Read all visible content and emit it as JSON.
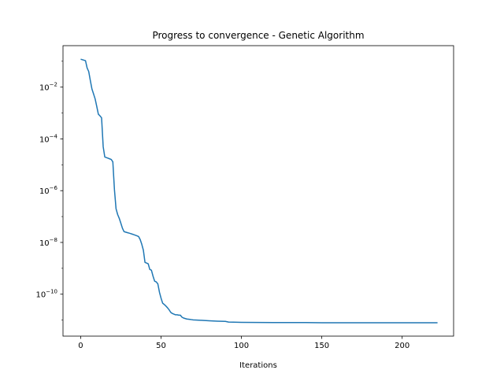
{
  "chart_data": {
    "type": "line",
    "title": "Progress to convergence - Genetic Algorithm",
    "xlabel": "Iterations",
    "ylabel": "",
    "yscale": "log",
    "xlim": [
      -11,
      232
    ],
    "ylim": [
      2.4e-12,
      0.4
    ],
    "grid": false,
    "legend": "none",
    "xticks": [
      0,
      50,
      100,
      150,
      200
    ],
    "xtick_labels": [
      "0",
      "50",
      "100",
      "150",
      "200"
    ],
    "yticks": [
      0.01,
      0.0001,
      1e-06,
      1e-08,
      1e-10
    ],
    "ytick_labels": [
      {
        "base": "10",
        "exp": "−2"
      },
      {
        "base": "10",
        "exp": "−4"
      },
      {
        "base": "10",
        "exp": "−6"
      },
      {
        "base": "10",
        "exp": "−8"
      },
      {
        "base": "10",
        "exp": "−10"
      }
    ],
    "series": [
      {
        "color": "#1f77b4",
        "x": [
          0,
          1,
          2,
          3,
          4,
          5,
          6,
          7,
          8,
          9,
          10,
          11,
          12,
          13,
          14,
          15,
          16,
          17,
          18,
          19,
          20,
          21,
          22,
          23,
          24,
          25,
          26,
          27,
          28,
          29,
          30,
          31,
          32,
          33,
          34,
          35,
          36,
          37,
          38,
          39,
          40,
          41,
          42,
          43,
          44,
          45,
          46,
          47,
          48,
          49,
          50,
          51,
          52,
          53,
          54,
          55,
          56,
          57,
          58,
          59,
          60,
          61,
          62,
          63,
          64,
          65,
          66,
          67,
          68,
          69,
          70,
          75,
          80,
          85,
          90,
          92,
          95,
          100,
          110,
          120,
          130,
          140,
          150,
          160,
          170,
          180,
          190,
          200,
          210,
          222
        ],
        "y": [
          0.12,
          0.115,
          0.11,
          0.105,
          0.055,
          0.04,
          0.018,
          0.0085,
          0.0055,
          0.0035,
          0.0018,
          0.0009,
          0.00078,
          0.00065,
          5e-05,
          2e-05,
          1.9e-05,
          1.8e-05,
          1.7e-05,
          1.6e-05,
          1.3e-05,
          1.1e-06,
          2e-07,
          1.2e-07,
          8.5e-08,
          5.5e-08,
          3.5e-08,
          2.6e-08,
          2.5e-08,
          2.4e-08,
          2.3e-08,
          2.2e-08,
          2.1e-08,
          2e-08,
          1.9e-08,
          1.8e-08,
          1.7e-08,
          1.3e-08,
          8.5e-09,
          5e-09,
          1.7e-09,
          1.6e-09,
          1.5e-09,
          9e-10,
          8.5e-10,
          5e-10,
          3.2e-10,
          3e-10,
          2.5e-10,
          1.2e-10,
          7e-11,
          4.5e-11,
          4e-11,
          3.5e-11,
          3e-11,
          2.5e-11,
          2e-11,
          1.8e-11,
          1.7e-11,
          1.6e-11,
          1.6e-11,
          1.55e-11,
          1.55e-11,
          1.3e-11,
          1.2e-11,
          1.15e-11,
          1.1e-11,
          1.08e-11,
          1.06e-11,
          1.04e-11,
          1.02e-11,
          9.8e-12,
          9.4e-12,
          9.1e-12,
          8.9e-12,
          8.4e-12,
          8.3e-12,
          8.2e-12,
          8.1e-12,
          8e-12,
          8e-12,
          8e-12,
          7.9e-12,
          7.9e-12,
          7.9e-12,
          7.9e-12,
          7.9e-12,
          7.9e-12,
          7.9e-12,
          7.9e-12
        ]
      }
    ]
  }
}
